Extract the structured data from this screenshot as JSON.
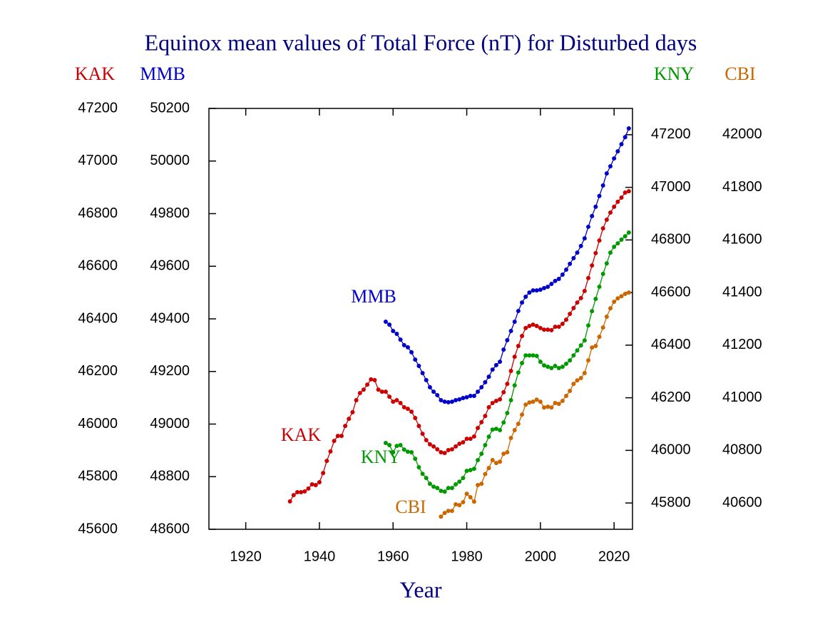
{
  "chart_data": {
    "type": "line",
    "title": "Equinox mean values of Total Force (nT) for Disturbed days",
    "xlabel": "Year",
    "xlim": [
      1910,
      2025
    ],
    "xticks": [
      1920,
      1940,
      1960,
      1980,
      2000,
      2020
    ],
    "ylim": [
      45600,
      47200
    ],
    "yticks": [
      45600,
      45800,
      46000,
      46200,
      46400,
      46600,
      46800,
      47000,
      47200
    ],
    "y2lim": [
      48600,
      50200
    ],
    "y2ticks": [
      48600,
      48800,
      49000,
      49200,
      49400,
      49600,
      49800,
      50000,
      50200
    ],
    "y3lim": [
      45700,
      47300
    ],
    "y3ticks": [
      45800,
      46000,
      46200,
      46400,
      46600,
      46800,
      47000,
      47200
    ],
    "y4lim": [
      40500,
      42100
    ],
    "y4ticks": [
      40600,
      40800,
      41000,
      41200,
      41400,
      41600,
      41800,
      42000
    ],
    "series": [
      {
        "name": "KAK",
        "color": "#cc0000",
        "axis": "y",
        "x": [
          1932,
          1933,
          1934,
          1935,
          1936,
          1937,
          1938,
          1939,
          1940,
          1941,
          1942,
          1943,
          1944,
          1945,
          1946,
          1947,
          1948,
          1949,
          1950,
          1951,
          1952,
          1953,
          1954,
          1955,
          1956,
          1957,
          1958,
          1959,
          1960,
          1961,
          1962,
          1963,
          1964,
          1965,
          1966,
          1967,
          1968,
          1969,
          1970,
          1971,
          1972,
          1973,
          1974,
          1975,
          1976,
          1977,
          1978,
          1979,
          1980,
          1981,
          1982,
          1983,
          1984,
          1985,
          1986,
          1987,
          1988,
          1989,
          1990,
          1991,
          1992,
          1993,
          1994,
          1995,
          1996,
          1997,
          1998,
          1999,
          2000,
          2001,
          2002,
          2003,
          2004,
          2005,
          2006,
          2007,
          2008,
          2009,
          2010,
          2011,
          2012,
          2013,
          2014,
          2015,
          2016,
          2017,
          2018,
          2019,
          2020,
          2021,
          2022,
          2023,
          2024
        ],
        "values": [
          45706,
          45730,
          45741,
          45741,
          45744,
          45755,
          45771,
          45768,
          45779,
          45814,
          45860,
          45896,
          45936,
          45955,
          45955,
          45993,
          46020,
          46045,
          46091,
          46118,
          46131,
          46150,
          46170,
          46167,
          46131,
          46123,
          46123,
          46104,
          46085,
          46091,
          46080,
          46064,
          46058,
          46047,
          46023,
          45993,
          45963,
          45939,
          45923,
          45915,
          45904,
          45893,
          45890,
          45901,
          45904,
          45915,
          45925,
          45931,
          45944,
          45944,
          45953,
          45985,
          46007,
          46031,
          46064,
          46080,
          46088,
          46094,
          46121,
          46153,
          46202,
          46256,
          46297,
          46335,
          46365,
          46373,
          46378,
          46373,
          46365,
          46359,
          46359,
          46357,
          46370,
          46370,
          46381,
          46397,
          46419,
          46441,
          46462,
          46479,
          46506,
          46555,
          46603,
          46650,
          46698,
          46744,
          46777,
          46804,
          46826,
          46845,
          46861,
          46880,
          46885
        ]
      },
      {
        "name": "MMB",
        "color": "#0000cc",
        "axis": "y2",
        "x": [
          1958,
          1959,
          1960,
          1961,
          1962,
          1963,
          1964,
          1965,
          1966,
          1967,
          1968,
          1969,
          1970,
          1971,
          1972,
          1973,
          1974,
          1975,
          1976,
          1977,
          1978,
          1979,
          1980,
          1981,
          1982,
          1983,
          1984,
          1985,
          1986,
          1987,
          1988,
          1989,
          1990,
          1991,
          1992,
          1993,
          1994,
          1995,
          1996,
          1997,
          1998,
          1999,
          2000,
          2001,
          2002,
          2003,
          2004,
          2005,
          2006,
          2007,
          2008,
          2009,
          2010,
          2011,
          2012,
          2013,
          2014,
          2015,
          2016,
          2017,
          2018,
          2019,
          2020,
          2021,
          2022,
          2023,
          2024
        ],
        "values": [
          49389,
          49378,
          49354,
          49343,
          49321,
          49300,
          49292,
          49273,
          49245,
          49221,
          49194,
          49167,
          49140,
          49123,
          49110,
          49091,
          49085,
          49083,
          49085,
          49091,
          49094,
          49099,
          49102,
          49107,
          49107,
          49123,
          49140,
          49159,
          49180,
          49207,
          49224,
          49237,
          49283,
          49319,
          49354,
          49389,
          49430,
          49462,
          49484,
          49500,
          49508,
          49508,
          49511,
          49517,
          49522,
          49533,
          49544,
          49552,
          49568,
          49587,
          49609,
          49631,
          49652,
          49677,
          49706,
          49750,
          49791,
          49826,
          49867,
          49907,
          49953,
          49980,
          50010,
          50037,
          50064,
          50091,
          50124
        ]
      },
      {
        "name": "KNY",
        "color": "#009900",
        "axis": "y3",
        "x": [
          1958,
          1959,
          1960,
          1961,
          1962,
          1963,
          1964,
          1965,
          1966,
          1967,
          1968,
          1969,
          1970,
          1971,
          1972,
          1973,
          1974,
          1975,
          1976,
          1977,
          1978,
          1979,
          1980,
          1981,
          1982,
          1983,
          1984,
          1985,
          1986,
          1987,
          1988,
          1989,
          1990,
          1991,
          1992,
          1993,
          1994,
          1995,
          1996,
          1997,
          1998,
          1999,
          2000,
          2001,
          2002,
          2003,
          2004,
          2005,
          2006,
          2007,
          2008,
          2009,
          2010,
          2011,
          2012,
          2013,
          2014,
          2015,
          2016,
          2017,
          2018,
          2019,
          2020,
          2021,
          2022,
          2023,
          2024
        ],
        "values": [
          46028,
          46020,
          45993,
          46017,
          46020,
          46003,
          45995,
          45993,
          45968,
          45936,
          45911,
          45895,
          45873,
          45862,
          45857,
          45846,
          45843,
          45857,
          45857,
          45871,
          45881,
          45895,
          45922,
          45925,
          45930,
          45963,
          45987,
          46020,
          46052,
          46079,
          46082,
          46077,
          46106,
          46142,
          46191,
          46247,
          46296,
          46332,
          46361,
          46361,
          46361,
          46359,
          46337,
          46323,
          46318,
          46313,
          46321,
          46313,
          46318,
          46329,
          46342,
          46361,
          46380,
          46399,
          46418,
          46475,
          46529,
          46576,
          46622,
          46671,
          46711,
          46752,
          46774,
          46787,
          46801,
          46814,
          46828
        ]
      },
      {
        "name": "CBI",
        "color": "#cc6600",
        "axis": "y4",
        "x": [
          1973,
          1974,
          1975,
          1976,
          1977,
          1978,
          1979,
          1980,
          1981,
          1982,
          1983,
          1984,
          1985,
          1986,
          1987,
          1988,
          1989,
          1990,
          1991,
          1992,
          1993,
          1994,
          1995,
          1996,
          1997,
          1998,
          1999,
          2000,
          2001,
          2002,
          2003,
          2004,
          2005,
          2006,
          2007,
          2008,
          2009,
          2010,
          2011,
          2012,
          2013,
          2014,
          2015,
          2016,
          2017,
          2018,
          2019,
          2020,
          2021,
          2022,
          2023,
          2024
        ],
        "values": [
          40548,
          40562,
          40570,
          40570,
          40595,
          40592,
          40603,
          40635,
          40622,
          40605,
          40668,
          40673,
          40710,
          40733,
          40763,
          40752,
          40757,
          40787,
          40793,
          40847,
          40877,
          40901,
          40936,
          40974,
          40982,
          40985,
          40993,
          40985,
          40963,
          40966,
          40963,
          40980,
          40977,
          40988,
          41007,
          41026,
          41053,
          41066,
          41075,
          41094,
          41142,
          41191,
          41197,
          41232,
          41267,
          41308,
          41340,
          41365,
          41378,
          41386,
          41395,
          41400
        ]
      }
    ]
  }
}
